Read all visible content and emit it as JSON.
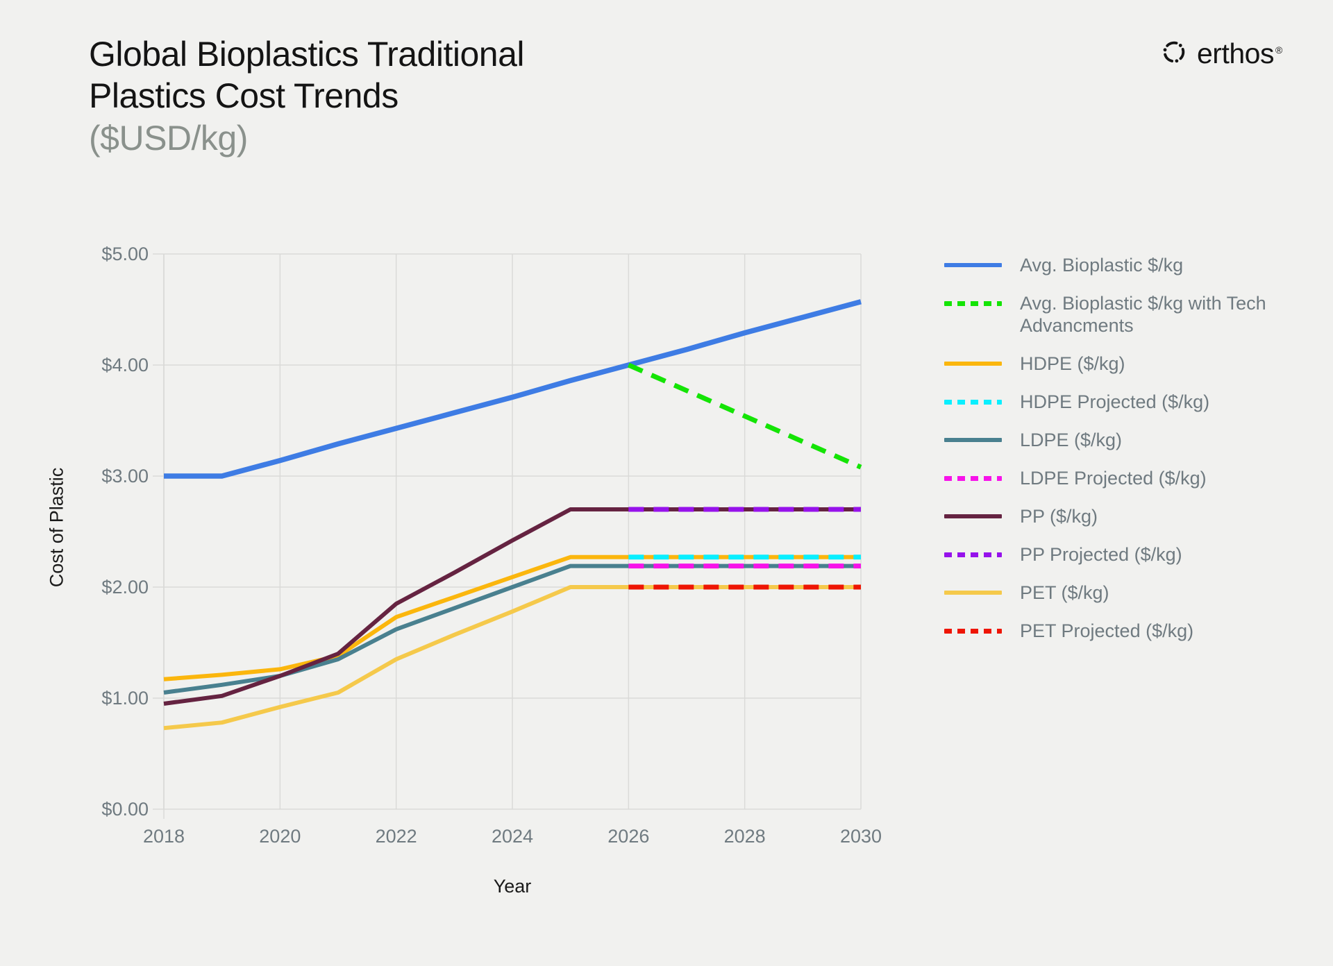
{
  "page": {
    "background": "#F1F1EF"
  },
  "header": {
    "title_line1": "Global Bioplastics Traditional",
    "title_line2": "Plastics Cost Trends",
    "subtitle": "($USD/kg)"
  },
  "brand": {
    "name": "erthos",
    "registered_mark": "®"
  },
  "chart_data": {
    "type": "line",
    "title": "Global Bioplastics Traditional Plastics Cost Trends ($USD/kg)",
    "xlabel": "Year",
    "ylabel": "Cost of Plastic",
    "xlim": [
      2018,
      2030
    ],
    "ylim": [
      0,
      5
    ],
    "x_ticks": [
      2018,
      2020,
      2022,
      2024,
      2026,
      2028,
      2030
    ],
    "y_tick_values": [
      0,
      1,
      2,
      3,
      4,
      5
    ],
    "y_tick_labels": [
      "$0.00",
      "$1.00",
      "$2.00",
      "$3.00",
      "$4.00",
      "$5.00"
    ],
    "grid": true,
    "grid_color": "#DADAD8",
    "legend_position": "right",
    "series": [
      {
        "name": "Avg. Bioplastic $/kg",
        "color": "#3E7CE4",
        "dash": "solid",
        "x": [
          2018,
          2019,
          2020,
          2021,
          2022,
          2023,
          2024,
          2025,
          2026,
          2027,
          2028,
          2029,
          2030
        ],
        "y": [
          3.0,
          3.0,
          3.14,
          3.29,
          3.43,
          3.57,
          3.71,
          3.86,
          4.0,
          4.14,
          4.29,
          4.43,
          4.57
        ]
      },
      {
        "name": "Avg. Bioplastic $/kg with Tech Advancments",
        "color": "#14E405",
        "dash": "dashed",
        "x": [
          2026,
          2027,
          2028,
          2029,
          2030
        ],
        "y": [
          4.0,
          3.77,
          3.54,
          3.31,
          3.08
        ]
      },
      {
        "name": "HDPE ($/kg)",
        "color": "#FBB60D",
        "dash": "solid",
        "x": [
          2018,
          2019,
          2020,
          2021,
          2022,
          2023,
          2024,
          2025,
          2026,
          2027,
          2028,
          2029,
          2030
        ],
        "y": [
          1.17,
          1.21,
          1.26,
          1.38,
          1.73,
          1.91,
          2.09,
          2.27,
          2.27,
          2.27,
          2.27,
          2.27,
          2.27
        ]
      },
      {
        "name": "HDPE Projected ($/kg)",
        "color": "#0AEFFF",
        "dash": "dashed",
        "x": [
          2026,
          2027,
          2028,
          2029,
          2030
        ],
        "y": [
          2.27,
          2.27,
          2.27,
          2.27,
          2.27
        ]
      },
      {
        "name": "LDPE ($/kg)",
        "color": "#49808F",
        "dash": "solid",
        "x": [
          2018,
          2019,
          2020,
          2021,
          2022,
          2023,
          2024,
          2025,
          2026,
          2027,
          2028,
          2029,
          2030
        ],
        "y": [
          1.05,
          1.12,
          1.2,
          1.35,
          1.62,
          1.81,
          2.0,
          2.19,
          2.19,
          2.19,
          2.19,
          2.19,
          2.19
        ]
      },
      {
        "name": "LDPE Projected ($/kg)",
        "color": "#F713E9",
        "dash": "dashed",
        "x": [
          2026,
          2027,
          2028,
          2029,
          2030
        ],
        "y": [
          2.19,
          2.19,
          2.19,
          2.19,
          2.19
        ]
      },
      {
        "name": "PP ($/kg)",
        "color": "#652341",
        "dash": "solid",
        "x": [
          2018,
          2019,
          2020,
          2021,
          2022,
          2023,
          2024,
          2025,
          2026,
          2027,
          2028,
          2029,
          2030
        ],
        "y": [
          0.95,
          1.02,
          1.2,
          1.4,
          1.85,
          2.13,
          2.42,
          2.7,
          2.7,
          2.7,
          2.7,
          2.7,
          2.7
        ]
      },
      {
        "name": "PP Projected ($/kg)",
        "color": "#9612EB",
        "dash": "dashed",
        "x": [
          2026,
          2027,
          2028,
          2029,
          2030
        ],
        "y": [
          2.7,
          2.7,
          2.7,
          2.7,
          2.7
        ]
      },
      {
        "name": "PET ($/kg)",
        "color": "#F5C94B",
        "dash": "solid",
        "x": [
          2018,
          2019,
          2020,
          2021,
          2022,
          2023,
          2024,
          2025,
          2026,
          2027,
          2028,
          2029,
          2030
        ],
        "y": [
          0.73,
          0.78,
          0.92,
          1.05,
          1.35,
          1.57,
          1.78,
          2.0,
          2.0,
          2.0,
          2.0,
          2.0,
          2.0
        ]
      },
      {
        "name": "PET Projected ($/kg)",
        "color": "#EE1503",
        "dash": "dashed",
        "x": [
          2026,
          2027,
          2028,
          2029,
          2030
        ],
        "y": [
          2.0,
          2.0,
          2.0,
          2.0,
          2.0
        ]
      }
    ]
  }
}
